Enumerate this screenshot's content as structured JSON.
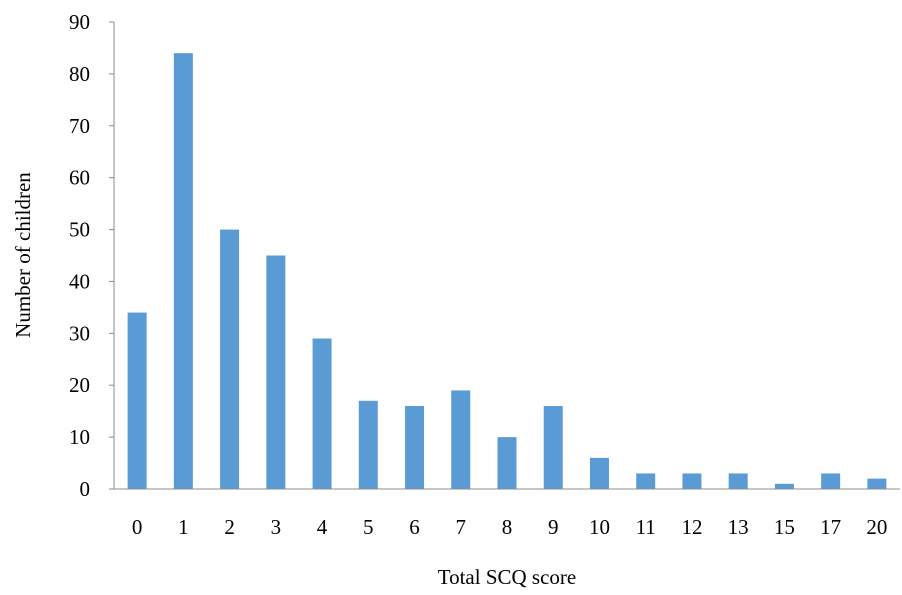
{
  "chart_data": {
    "type": "bar",
    "title": "",
    "xlabel": "Total SCQ score",
    "ylabel": "Number of children",
    "categories": [
      "0",
      "1",
      "2",
      "3",
      "4",
      "5",
      "6",
      "7",
      "8",
      "9",
      "10",
      "11",
      "12",
      "13",
      "15",
      "17",
      "20"
    ],
    "values": [
      34,
      84,
      50,
      45,
      29,
      17,
      16,
      19,
      10,
      16,
      6,
      3,
      3,
      3,
      1,
      3,
      2
    ],
    "ylim": [
      0,
      90
    ],
    "yticks": [
      0,
      10,
      20,
      30,
      40,
      50,
      60,
      70,
      80,
      90
    ],
    "grid": false,
    "legend": "none",
    "bar_color": "#5b9bd5"
  }
}
